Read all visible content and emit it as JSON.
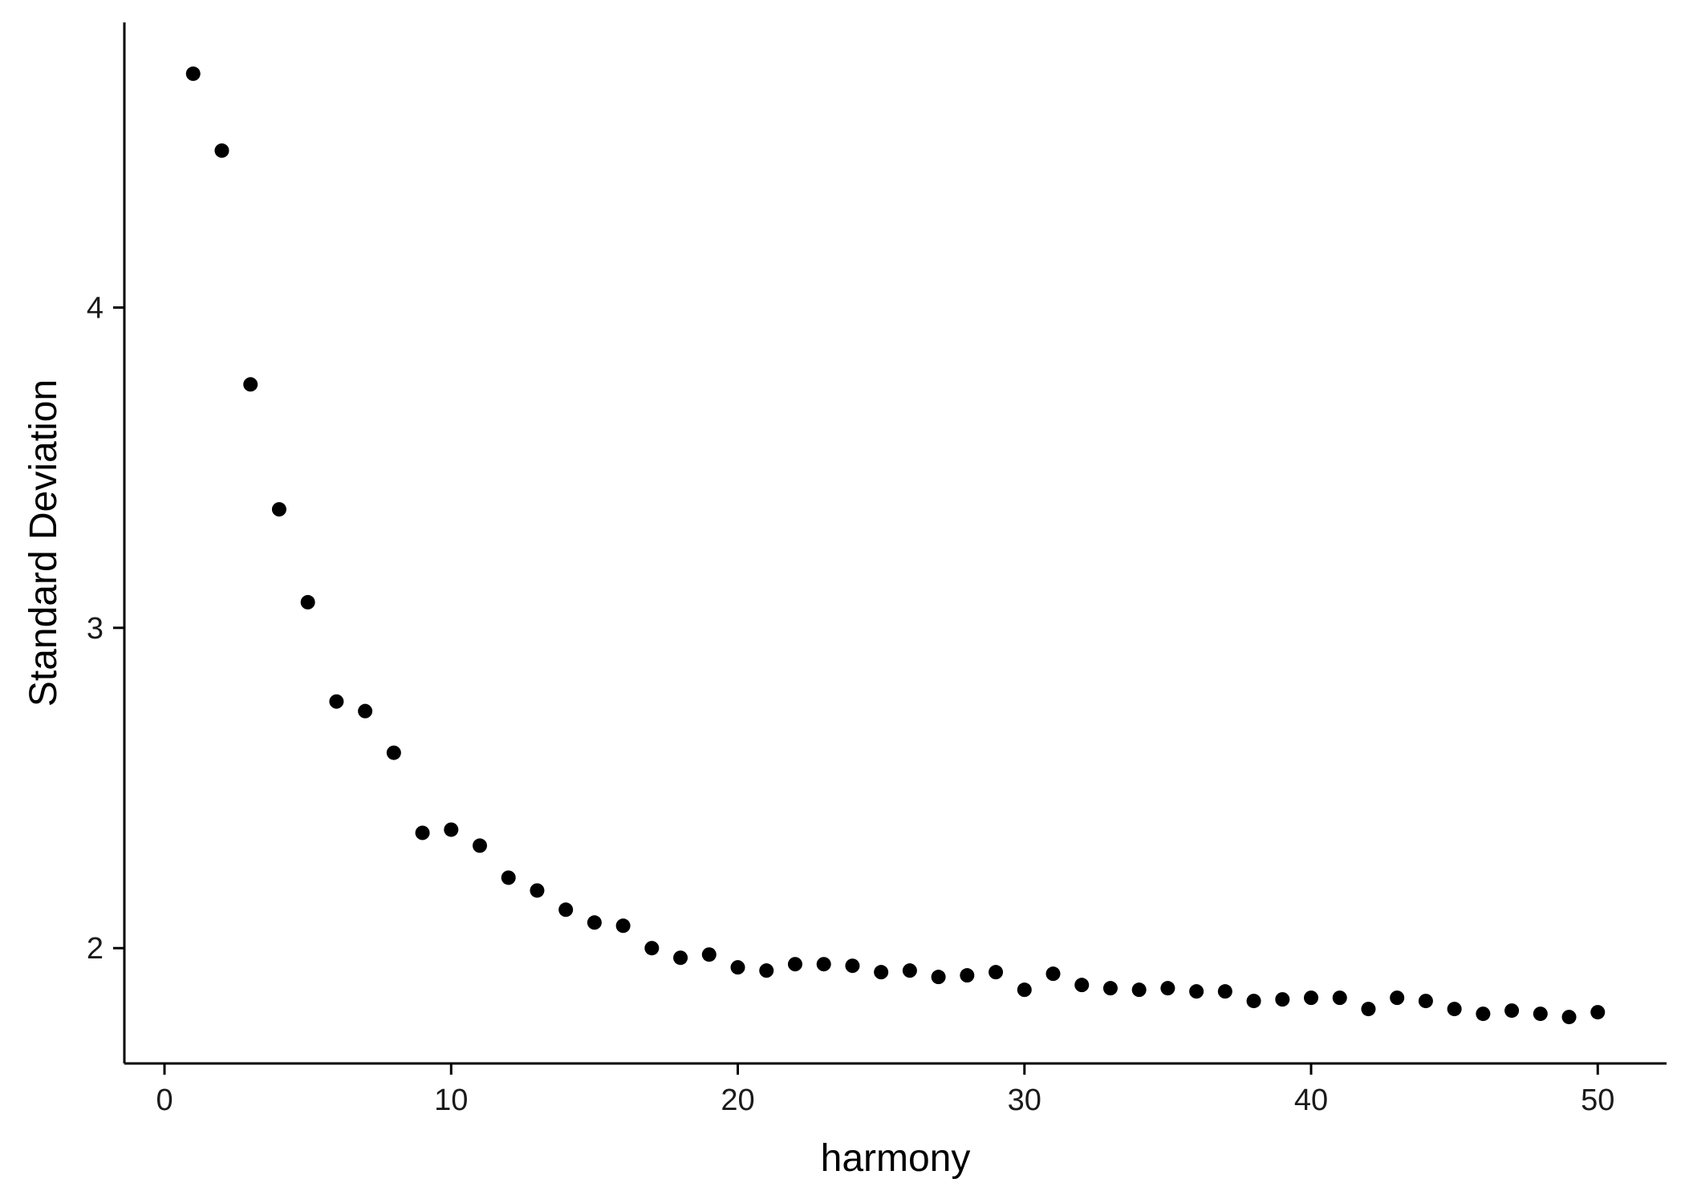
{
  "chart_data": {
    "type": "scatter",
    "title": "",
    "xlabel": "harmony",
    "ylabel": "Standard Deviation",
    "xlim": [
      -1.4,
      52.4
    ],
    "ylim": [
      1.64,
      4.89
    ],
    "x_ticks": [
      0,
      10,
      20,
      30,
      40,
      50
    ],
    "y_ticks": [
      2,
      3,
      4
    ],
    "x_tick_labels": [
      "0",
      "10",
      "20",
      "30",
      "40",
      "50"
    ],
    "y_tick_labels": [
      "2",
      "3",
      "4"
    ],
    "grid": false,
    "legend": "none",
    "point_color": "#000000",
    "series": [
      {
        "x": [
          1,
          2,
          3,
          4,
          5,
          6,
          7,
          8,
          9,
          10,
          11,
          12,
          13,
          14,
          15,
          16,
          17,
          18,
          19,
          20,
          21,
          22,
          23,
          24,
          25,
          26,
          27,
          28,
          29,
          30,
          31,
          32,
          33,
          34,
          35,
          36,
          37,
          38,
          39,
          40,
          41,
          42,
          43,
          44,
          45,
          46,
          47,
          48,
          49,
          50
        ],
        "y": [
          4.73,
          4.49,
          3.76,
          3.37,
          3.08,
          2.77,
          2.74,
          2.61,
          2.36,
          2.37,
          2.32,
          2.22,
          2.18,
          2.12,
          2.08,
          2.07,
          2.0,
          1.97,
          1.98,
          1.94,
          1.93,
          1.95,
          1.95,
          1.945,
          1.925,
          1.93,
          1.91,
          1.915,
          1.925,
          1.87,
          1.92,
          1.885,
          1.875,
          1.87,
          1.875,
          1.865,
          1.865,
          1.835,
          1.84,
          1.845,
          1.845,
          1.81,
          1.845,
          1.835,
          1.81,
          1.795,
          1.805,
          1.795,
          1.785,
          1.8
        ]
      }
    ]
  }
}
